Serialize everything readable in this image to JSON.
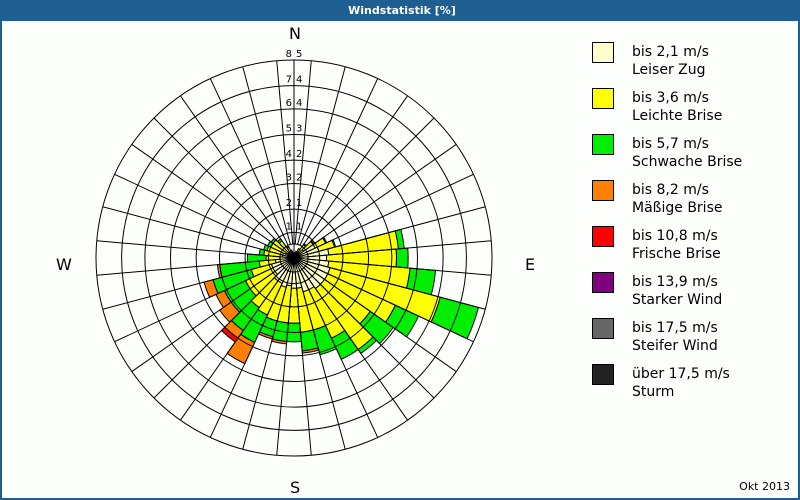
{
  "window": {
    "title": "Windstatistik [%]",
    "footer": "Okt 2013",
    "title_bg": "#1e5e91"
  },
  "compass": {
    "N": "N",
    "E": "E",
    "S": "S",
    "W": "W"
  },
  "ring_labels": [
    "1,1",
    "2,1",
    "3,2",
    "4,2",
    "5,3",
    "6,4",
    "7,4",
    "8,5"
  ],
  "legend": [
    {
      "range": "bis 2,1 m/s",
      "name": "Leiser Zug",
      "color": "#ffffcc"
    },
    {
      "range": "bis 3,6 m/s",
      "name": "Leichte Brise",
      "color": "#ffff00"
    },
    {
      "range": "bis 5,7 m/s",
      "name": "Schwache Brise",
      "color": "#00ee00"
    },
    {
      "range": "bis 8,2 m/s",
      "name": "Mäßige Brise",
      "color": "#ff8000"
    },
    {
      "range": "bis 10,8 m/s",
      "name": "Frische Brise",
      "color": "#ff0000"
    },
    {
      "range": "bis 13,9 m/s",
      "name": "Starker Wind",
      "color": "#800080"
    },
    {
      "range": "bis 17,5 m/s",
      "name": "Steifer Wind",
      "color": "#666666"
    },
    {
      "range": "über 17,5 m/s",
      "name": "Sturm",
      "color": "#222222"
    }
  ],
  "chart_data": {
    "type": "windrose",
    "title": "Windstatistik [%]",
    "subtitle": "Okt 2013",
    "max_percent": 8.5,
    "rings": [
      1.1,
      2.1,
      3.2,
      4.2,
      5.3,
      6.4,
      7.4,
      8.5
    ],
    "sector_width_deg": 10,
    "classes": [
      "bis 2,1 m/s Leiser Zug",
      "bis 3,6 m/s Leichte Brise",
      "bis 5,7 m/s Schwache Brise",
      "bis 8,2 m/s Mäßige Brise",
      "bis 10,8 m/s Frische Brise",
      "bis 13,9 m/s Starker Wind",
      "bis 17,5 m/s Steifer Wind",
      "über 17,5 m/s Sturm"
    ],
    "sectors_cumulative_percent": [
      {
        "dir": 0,
        "values": [
          0.1,
          0.15,
          0.15,
          0.15,
          0.15
        ]
      },
      {
        "dir": 10,
        "values": [
          0.1,
          0.2,
          0.2,
          0.2,
          0.2
        ]
      },
      {
        "dir": 20,
        "values": [
          0.2,
          0.3,
          0.3,
          0.3,
          0.3
        ]
      },
      {
        "dir": 30,
        "values": [
          0.3,
          0.45,
          0.45,
          0.45,
          0.45
        ]
      },
      {
        "dir": 40,
        "values": [
          0.3,
          0.7,
          0.75,
          0.75,
          0.75
        ]
      },
      {
        "dir": 50,
        "values": [
          0.5,
          1.0,
          1.05,
          1.05,
          1.05
        ]
      },
      {
        "dir": 60,
        "values": [
          1.0,
          1.5,
          1.55,
          1.55,
          1.55
        ]
      },
      {
        "dir": 70,
        "values": [
          1.1,
          1.8,
          1.85,
          1.85,
          1.85
        ]
      },
      {
        "dir": 80,
        "values": [
          1.5,
          4.5,
          4.75,
          4.75,
          4.75
        ]
      },
      {
        "dir": 90,
        "values": [
          1.4,
          4.4,
          4.9,
          4.9,
          4.9
        ]
      },
      {
        "dir": 100,
        "values": [
          1.5,
          5.0,
          6.1,
          6.1,
          6.1
        ]
      },
      {
        "dir": 110,
        "values": [
          1.6,
          6.5,
          8.2,
          8.2,
          8.2
        ]
      },
      {
        "dir": 120,
        "values": [
          1.6,
          4.8,
          5.9,
          5.9,
          5.9
        ]
      },
      {
        "dir": 130,
        "values": [
          1.6,
          4.0,
          5.2,
          5.2,
          5.2
        ]
      },
      {
        "dir": 140,
        "values": [
          1.6,
          4.8,
          5.0,
          5.0,
          5.0
        ]
      },
      {
        "dir": 150,
        "values": [
          1.5,
          3.8,
          4.8,
          4.8,
          4.8
        ]
      },
      {
        "dir": 160,
        "values": [
          1.5,
          3.2,
          4.3,
          4.3,
          4.3
        ]
      },
      {
        "dir": 170,
        "values": [
          1.3,
          3.2,
          4.0,
          4.1,
          4.1
        ]
      },
      {
        "dir": 180,
        "values": [
          1.3,
          2.8,
          3.6,
          3.6,
          3.6
        ]
      },
      {
        "dir": 190,
        "values": [
          1.2,
          2.8,
          3.6,
          3.7,
          3.7
        ]
      },
      {
        "dir": 200,
        "values": [
          1.3,
          2.8,
          3.5,
          3.6,
          3.6
        ]
      },
      {
        "dir": 210,
        "values": [
          1.2,
          2.7,
          4.0,
          5.0,
          5.0
        ]
      },
      {
        "dir": 220,
        "values": [
          1.2,
          2.6,
          3.8,
          4.2,
          4.4
        ]
      },
      {
        "dir": 230,
        "values": [
          1.0,
          2.3,
          3.3,
          3.9,
          3.9
        ]
      },
      {
        "dir": 240,
        "values": [
          1.0,
          2.3,
          3.3,
          3.7,
          3.7
        ]
      },
      {
        "dir": 250,
        "values": [
          1.0,
          1.9,
          3.6,
          4.0,
          4.0
        ]
      },
      {
        "dir": 260,
        "values": [
          0.8,
          1.5,
          3.2,
          3.3,
          3.3
        ]
      },
      {
        "dir": 270,
        "values": [
          0.6,
          1.2,
          2.0,
          2.0,
          2.0
        ]
      },
      {
        "dir": 280,
        "values": [
          0.5,
          1.3,
          1.5,
          1.5,
          1.5
        ]
      },
      {
        "dir": 290,
        "values": [
          0.5,
          1.2,
          1.35,
          1.35,
          1.35
        ]
      },
      {
        "dir": 300,
        "values": [
          0.4,
          1.1,
          1.25,
          1.25,
          1.25
        ]
      },
      {
        "dir": 310,
        "values": [
          0.3,
          1.1,
          1.2,
          1.2,
          1.2
        ]
      },
      {
        "dir": 320,
        "values": [
          0.3,
          0.9,
          1.0,
          1.0,
          1.0
        ]
      },
      {
        "dir": 330,
        "values": [
          0.2,
          0.5,
          0.55,
          0.55,
          0.55
        ]
      },
      {
        "dir": 340,
        "values": [
          0.15,
          0.3,
          0.35,
          0.35,
          0.35
        ]
      },
      {
        "dir": 350,
        "values": [
          0.1,
          0.2,
          0.2,
          0.2,
          0.2
        ]
      }
    ],
    "legend_position": "right"
  }
}
